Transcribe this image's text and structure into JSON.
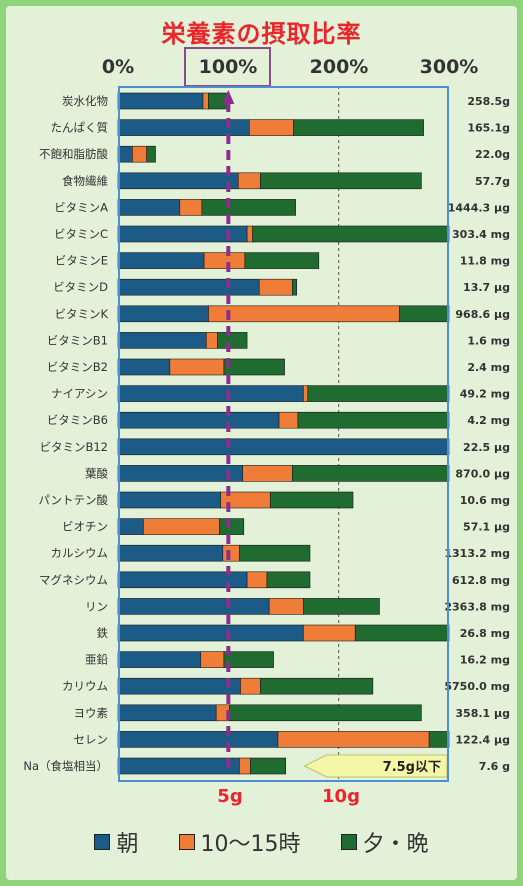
{
  "title": "栄養素の摂取比率",
  "axis_ticks": [
    "0%",
    "100%",
    "200%",
    "300%"
  ],
  "gram_ticks": [
    "5g",
    "10g"
  ],
  "na_note": "7.5g以下",
  "legend": [
    "朝",
    "10～15時",
    "夕・晩"
  ],
  "colors": {
    "morning": "#1c5b86",
    "midday": "#ef7d38",
    "evening": "#1f6b30",
    "target_line": "#8a2f8d",
    "axis_box": "#4f8fd1"
  },
  "chart_data": {
    "type": "bar",
    "stacked": true,
    "orientation": "horizontal",
    "xlim": [
      0,
      300
    ],
    "target_line_at": 100,
    "categories": [
      "炭水化物",
      "たんぱく質",
      "不飽和脂肪酸",
      "食物繊維",
      "ビタミンA",
      "ビタミンC",
      "ビタミンE",
      "ビタミンD",
      "ビタミンK",
      "ビタミンB1",
      "ビタミンB2",
      "ナイアシン",
      "ビタミンB6",
      "ビタミンB12",
      "葉酸",
      "パントテン酸",
      "ビオチン",
      "カルシウム",
      "マグネシウム",
      "リン",
      "鉄",
      "亜鉛",
      "カリウム",
      "ヨウ素",
      "セレン",
      "Na（食塩相当）"
    ],
    "values_text": [
      "258.5g",
      "165.1g",
      "22.0g",
      "57.7g",
      "1444.3 μg",
      "303.4 mg",
      "11.8 mg",
      "13.7 μg",
      "968.6 μg",
      "1.6 mg",
      "2.4 mg",
      "49.2 mg",
      "4.2 mg",
      "22.5 μg",
      "870.0 μg",
      "10.6 mg",
      "57.1 μg",
      "1313.2 mg",
      "612.8 mg",
      "2363.8 mg",
      "26.8 mg",
      "16.2 mg",
      "5750.0 mg",
      "358.1 μg",
      "122.4 μg",
      "7.6 g"
    ],
    "series": [
      {
        "name": "朝",
        "values": [
          77,
          119,
          13,
          109,
          56,
          117,
          78,
          128,
          82,
          80,
          47,
          168,
          146,
          300,
          113,
          93,
          23,
          95,
          117,
          137,
          168,
          75,
          111,
          89,
          145,
          110
        ]
      },
      {
        "name": "10～15時",
        "values": [
          5,
          40,
          13,
          20,
          20,
          5,
          37,
          30,
          173,
          10,
          49,
          4,
          17,
          0,
          45,
          45,
          69,
          15,
          18,
          31,
          47,
          21,
          18,
          12,
          137,
          10
        ]
      },
      {
        "name": "夕・晩",
        "values": [
          18,
          118,
          8,
          146,
          85,
          180,
          67,
          4,
          45,
          27,
          55,
          130,
          137,
          0,
          143,
          75,
          22,
          64,
          39,
          69,
          86,
          45,
          102,
          174,
          18,
          32
        ]
      }
    ]
  }
}
